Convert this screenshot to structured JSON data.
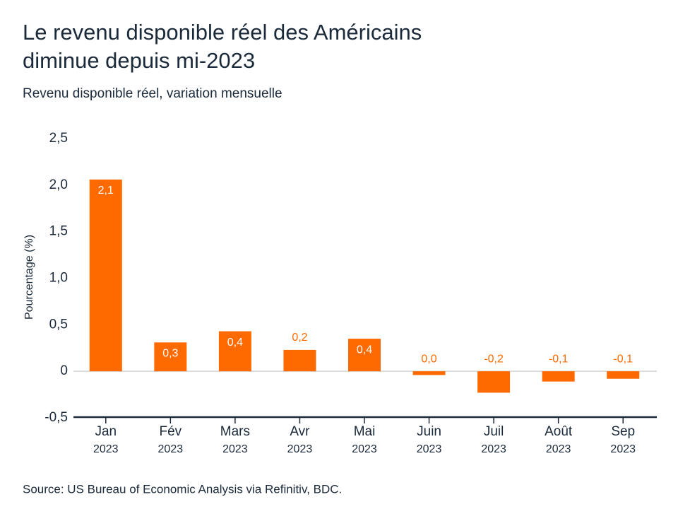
{
  "chart_data": {
    "type": "bar",
    "title": [
      "Le revenu disponible réel des Américains",
      "diminue depuis mi-2023"
    ],
    "subtitle": "Revenu disponible réel, variation mensuelle",
    "y_label": "Pourcentage (%)",
    "source": "Source: US Bureau of Economic Analysis via Refinitiv, BDC.",
    "categories": [
      [
        "Jan",
        "2023"
      ],
      [
        "Fév",
        "2023"
      ],
      [
        "Mars",
        "2023"
      ],
      [
        "Avr",
        "2023"
      ],
      [
        "Mai",
        "2023"
      ],
      [
        "Juin",
        "2023"
      ],
      [
        "Juil",
        "2023"
      ],
      [
        "Août",
        "2023"
      ],
      [
        "Sep",
        "2023"
      ]
    ],
    "values": [
      2.06,
      0.31,
      0.43,
      0.23,
      0.35,
      -0.04,
      -0.23,
      -0.11,
      -0.08
    ],
    "value_labels": [
      "2,1",
      "0,3",
      "0,4",
      "0,2",
      "0,4",
      "0,0",
      "-0,2",
      "-0,1",
      "-0,1"
    ],
    "color": "#ff6a00",
    "ylim": [
      -0.5,
      2.5
    ],
    "yticks": [
      {
        "value": -0.5,
        "label": "-0,5"
      },
      0,
      {
        "value": 0.5,
        "label": "0,5"
      },
      {
        "value": 1.0,
        "label": "1,0"
      },
      {
        "value": 1.5,
        "label": "1,5"
      },
      {
        "value": 2.0,
        "label": "2,0"
      },
      {
        "value": 2.5,
        "label": "2,5"
      }
    ]
  }
}
